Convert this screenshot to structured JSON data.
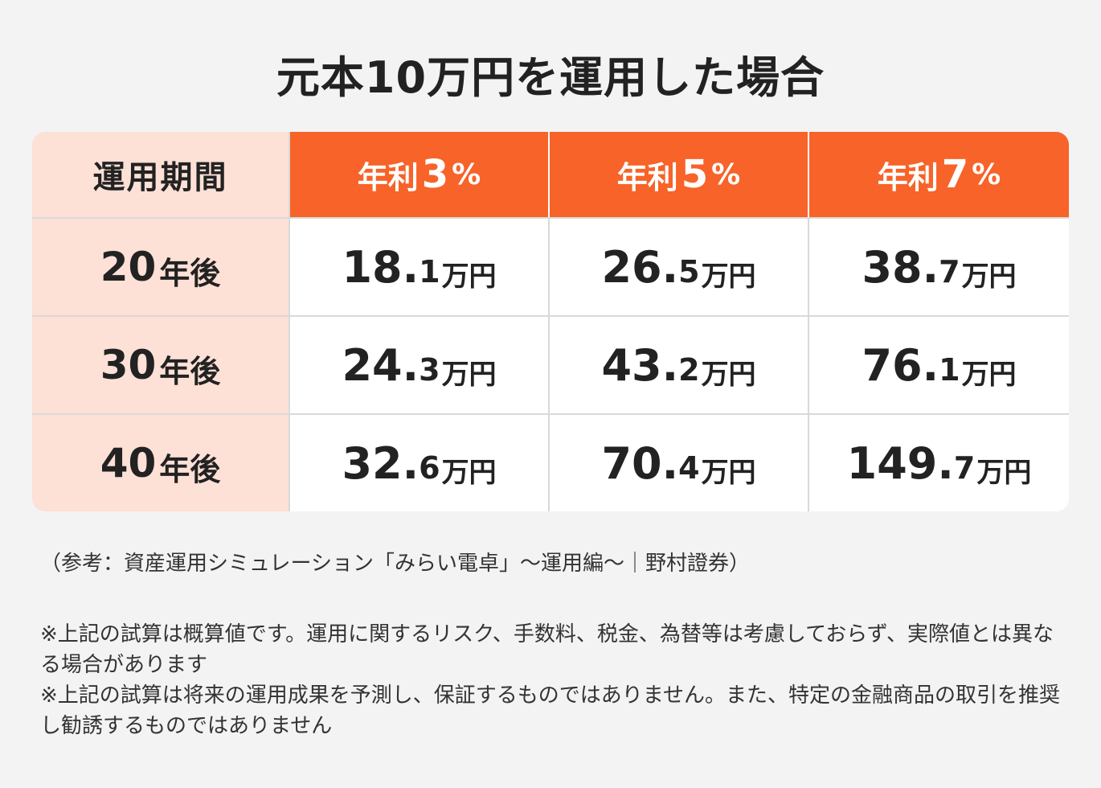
{
  "title": "元本10万円を運用した場合",
  "table": {
    "header_label": "運用期間",
    "rates": [
      {
        "prefix": "年利",
        "num": "3",
        "pct": "%"
      },
      {
        "prefix": "年利",
        "num": "5",
        "pct": "%"
      },
      {
        "prefix": "年利",
        "num": "7",
        "pct": "%"
      }
    ],
    "rows": [
      {
        "period_num": "20",
        "period_unit": "年後",
        "values": [
          {
            "int": "18.",
            "dec": "1",
            "unit": "万円"
          },
          {
            "int": "26.",
            "dec": "5",
            "unit": "万円"
          },
          {
            "int": "38.",
            "dec": "7",
            "unit": "万円"
          }
        ]
      },
      {
        "period_num": "30",
        "period_unit": "年後",
        "values": [
          {
            "int": "24.",
            "dec": "3",
            "unit": "万円"
          },
          {
            "int": "43.",
            "dec": "2",
            "unit": "万円"
          },
          {
            "int": "76.",
            "dec": "1",
            "unit": "万円"
          }
        ]
      },
      {
        "period_num": "40",
        "period_unit": "年後",
        "values": [
          {
            "int": "32.",
            "dec": "6",
            "unit": "万円"
          },
          {
            "int": "70.",
            "dec": "4",
            "unit": "万円"
          },
          {
            "int": "149.",
            "dec": "7",
            "unit": "万円"
          }
        ]
      }
    ]
  },
  "source": "（参考：資産運用シミュレーション「みらい電卓」〜運用編〜｜野村證券）",
  "notes": [
    "※上記の試算は概算値です。運用に関するリスク、手数料、税金、為替等は考慮しておらず、実際値とは異なる場合があります",
    "※上記の試算は将来の運用成果を予測し、保証するものではありません。また、特定の金融商品の取引を推奨し勧誘するものではありません"
  ],
  "colors": {
    "accent": "#f76328",
    "label_bg": "#fde0d6",
    "page_bg": "#f3f3f3"
  }
}
